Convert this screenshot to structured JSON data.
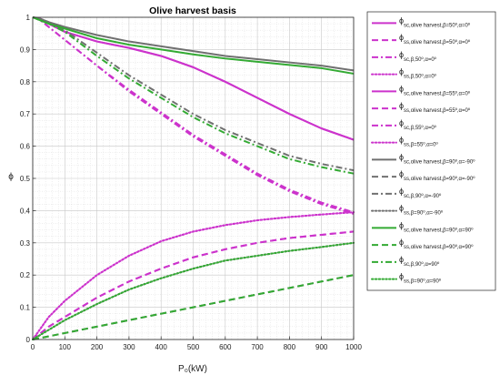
{
  "chart_data": {
    "type": "line",
    "title": "Olive harvest basis",
    "xlabel": "P₀(kW)",
    "ylabel": "ϕ",
    "xlim": [
      0,
      1000
    ],
    "ylim": [
      0,
      1
    ],
    "x_ticks": [
      "0",
      "100",
      "200",
      "300",
      "400",
      "500",
      "600",
      "700",
      "800",
      "900",
      "1000"
    ],
    "y_ticks": [
      "0",
      "0.1",
      "0.2",
      "0.3",
      "0.4",
      "0.5",
      "0.6",
      "0.7",
      "0.8",
      "0.9",
      "1"
    ],
    "grid": true,
    "minor_grid": true,
    "legend_position": "outside-right",
    "colors": {
      "magenta": "#cc33cc",
      "gray": "#707070",
      "green": "#33aa33"
    },
    "x": [
      0,
      25,
      50,
      100,
      200,
      300,
      400,
      500,
      600,
      700,
      800,
      900,
      1000
    ],
    "series": [
      {
        "name": "ϕsc,olive harvest,β=50º,α=0º",
        "sub": "sc,olive harvest,β=50º,α=0º",
        "color": "magenta",
        "style": "solid",
        "values": [
          1.0,
          0.995,
          0.98,
          0.955,
          0.925,
          0.905,
          0.88,
          0.845,
          0.8,
          0.75,
          0.7,
          0.655,
          0.62
        ]
      },
      {
        "name": "ϕss,olive harvest,β=50º,α=0º",
        "sub": "ss,olive harvest,β=50º,α=0º",
        "color": "magenta",
        "style": "dashed",
        "values": [
          0.0,
          0.02,
          0.04,
          0.07,
          0.13,
          0.18,
          0.22,
          0.255,
          0.28,
          0.3,
          0.315,
          0.325,
          0.335
        ]
      },
      {
        "name": "ϕsc,β,50º,α=0º",
        "sub": "sc,β,50º,α=0º",
        "color": "magenta",
        "style": "dashdot",
        "values": [
          1.0,
          0.99,
          0.97,
          0.93,
          0.85,
          0.77,
          0.7,
          0.63,
          0.57,
          0.51,
          0.46,
          0.42,
          0.39
        ]
      },
      {
        "name": "ϕss,β,50º,α=0º",
        "sub": "ss,β,50º,α=0º",
        "color": "magenta",
        "style": "dotted",
        "values": [
          0.0,
          0.035,
          0.07,
          0.12,
          0.2,
          0.26,
          0.305,
          0.335,
          0.355,
          0.37,
          0.38,
          0.388,
          0.395
        ]
      },
      {
        "name": "ϕsc,olive harvest,β=55º,α=0º",
        "sub": "sc,olive harvest,β=55º,α=0º",
        "color": "magenta",
        "style": "solid",
        "values": [
          1.0,
          0.995,
          0.98,
          0.955,
          0.925,
          0.905,
          0.88,
          0.845,
          0.8,
          0.75,
          0.7,
          0.655,
          0.62
        ]
      },
      {
        "name": "ϕss,olive harvest,β=55º,α=0º",
        "sub": "ss,olive harvest,β=55º,α=0º",
        "color": "magenta",
        "style": "dashed",
        "values": [
          0.0,
          0.02,
          0.04,
          0.07,
          0.13,
          0.18,
          0.22,
          0.255,
          0.28,
          0.3,
          0.315,
          0.325,
          0.335
        ]
      },
      {
        "name": "ϕsc,β,55º,α=0º",
        "sub": "sc,β,55º,α=0º",
        "color": "magenta",
        "style": "dashdot",
        "values": [
          1.0,
          0.99,
          0.97,
          0.93,
          0.85,
          0.775,
          0.705,
          0.635,
          0.575,
          0.515,
          0.465,
          0.425,
          0.395
        ]
      },
      {
        "name": "ϕss,β=55º,α=0º",
        "sub": "ss,β=55º,α=0º",
        "color": "magenta",
        "style": "dotted",
        "values": [
          0.0,
          0.035,
          0.07,
          0.12,
          0.2,
          0.26,
          0.305,
          0.335,
          0.355,
          0.37,
          0.38,
          0.388,
          0.395
        ]
      },
      {
        "name": "ϕsc,olive harvest,β=90º,α=-90º",
        "sub": "sc,olive harvest,β=90º,α=-90º",
        "color": "gray",
        "style": "solid",
        "values": [
          1.0,
          0.995,
          0.985,
          0.97,
          0.945,
          0.925,
          0.91,
          0.895,
          0.88,
          0.87,
          0.86,
          0.85,
          0.835
        ]
      },
      {
        "name": "ϕss,olive harvest,β=90º,α=-90º",
        "sub": "ss,olive harvest,β=90º,α=-90º",
        "color": "gray",
        "style": "dashed",
        "values": [
          0.0,
          0.005,
          0.01,
          0.02,
          0.04,
          0.06,
          0.08,
          0.1,
          0.12,
          0.14,
          0.16,
          0.18,
          0.2
        ]
      },
      {
        "name": "ϕsc,β,90º,α=-90º",
        "sub": "sc,β,90º,α=-90º",
        "color": "gray",
        "style": "dashdot",
        "values": [
          1.0,
          0.995,
          0.985,
          0.96,
          0.89,
          0.82,
          0.76,
          0.7,
          0.65,
          0.61,
          0.57,
          0.545,
          0.525
        ]
      },
      {
        "name": "ϕss,β=90º,α=-90º",
        "sub": "ss,β=90º,α=-90º",
        "color": "gray",
        "style": "dotted",
        "values": [
          0.0,
          0.015,
          0.03,
          0.06,
          0.11,
          0.155,
          0.19,
          0.22,
          0.245,
          0.26,
          0.275,
          0.287,
          0.3
        ]
      },
      {
        "name": "ϕsc,olive harvest,β=90º,α=90º",
        "sub": "sc,olive harvest,β=90º,α=90º",
        "color": "green",
        "style": "solid",
        "values": [
          1.0,
          0.99,
          0.98,
          0.965,
          0.935,
          0.915,
          0.9,
          0.885,
          0.872,
          0.862,
          0.852,
          0.842,
          0.825
        ]
      },
      {
        "name": "ϕss,olive harvest,β=90º,α=90º",
        "sub": "ss,olive harvest,β=90º,α=90º",
        "color": "green",
        "style": "dashed",
        "values": [
          0.0,
          0.005,
          0.01,
          0.02,
          0.04,
          0.06,
          0.08,
          0.1,
          0.12,
          0.14,
          0.16,
          0.18,
          0.2
        ]
      },
      {
        "name": "ϕsc,β,90º,α=90º",
        "sub": "sc,β,90º,α=90º",
        "color": "green",
        "style": "dashdot",
        "values": [
          1.0,
          0.99,
          0.98,
          0.955,
          0.88,
          0.81,
          0.75,
          0.69,
          0.64,
          0.6,
          0.56,
          0.535,
          0.515
        ]
      },
      {
        "name": "ϕss,β=90º,α=90º",
        "sub": "ss,β=90º,α=90º",
        "color": "green",
        "style": "dotted",
        "values": [
          0.0,
          0.015,
          0.03,
          0.06,
          0.11,
          0.155,
          0.19,
          0.22,
          0.245,
          0.26,
          0.275,
          0.287,
          0.3
        ]
      }
    ]
  }
}
